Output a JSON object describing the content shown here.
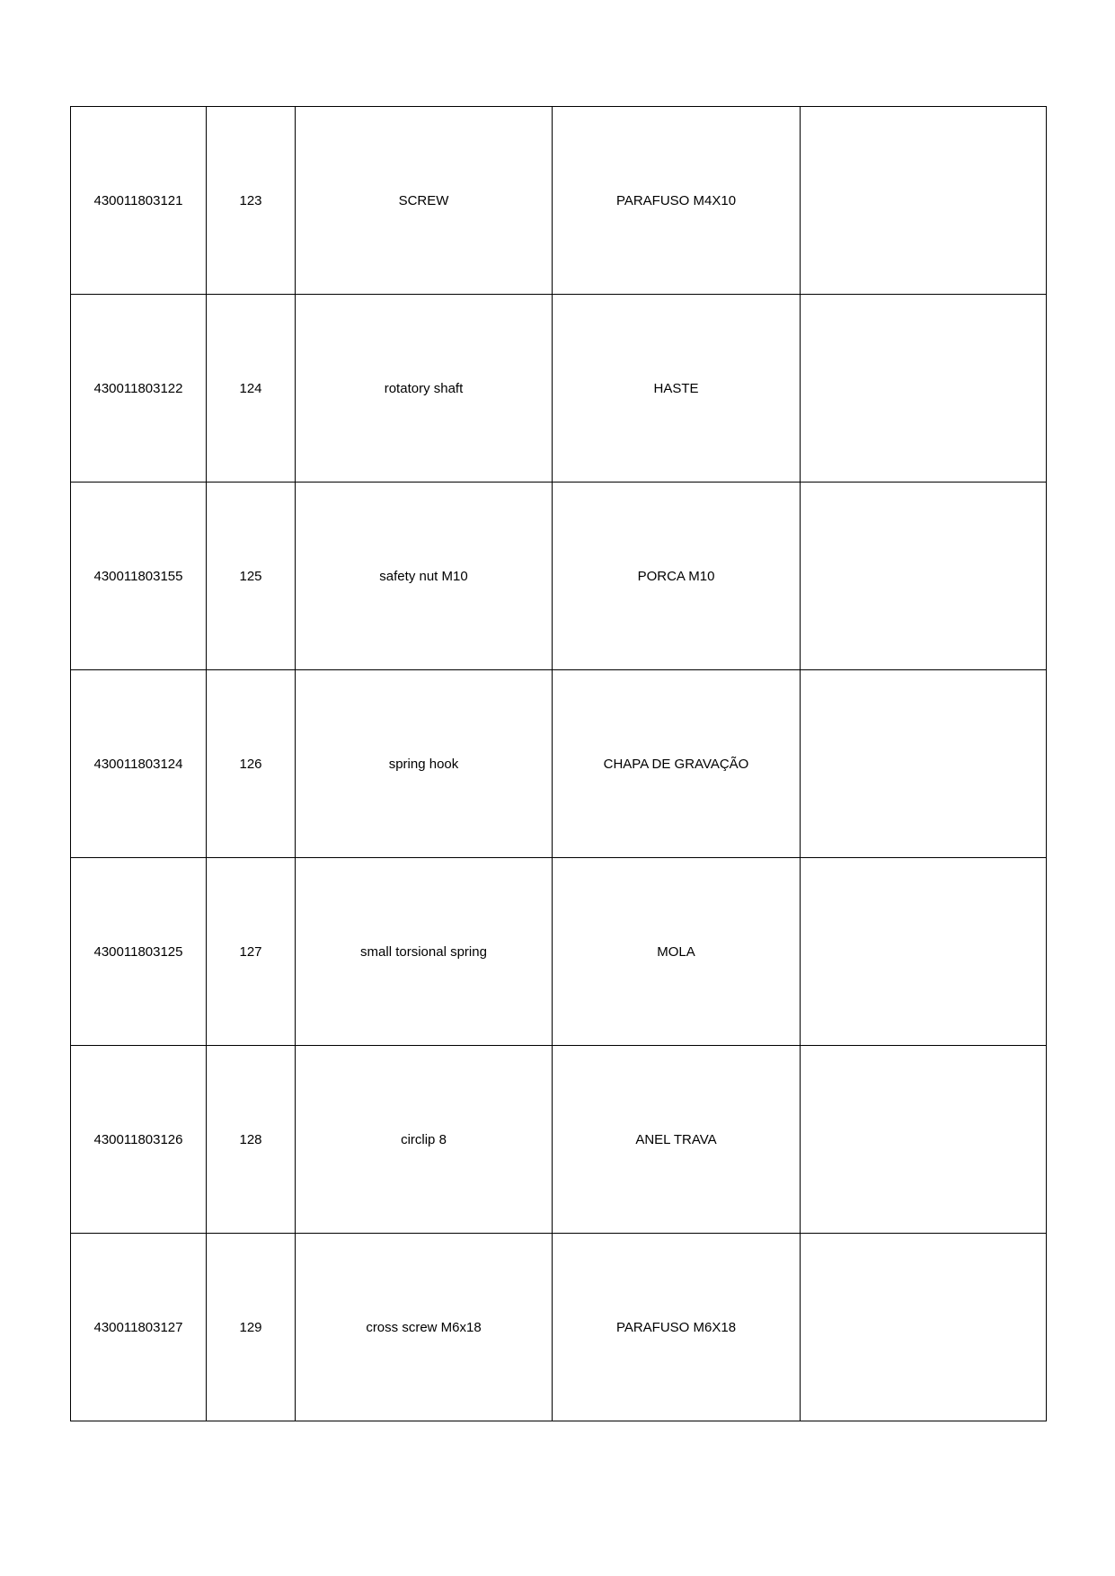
{
  "rows": [
    {
      "code": "430011803121",
      "num": "123",
      "name_en": "SCREW",
      "name_pt": "PARAFUSO M4X10",
      "extra": ""
    },
    {
      "code": "430011803122",
      "num": "124",
      "name_en": "rotatory shaft",
      "name_pt": "HASTE",
      "extra": ""
    },
    {
      "code": "430011803155",
      "num": "125",
      "name_en": "safety nut M10",
      "name_pt": "PORCA M10",
      "extra": ""
    },
    {
      "code": "430011803124",
      "num": "126",
      "name_en": "spring hook",
      "name_pt": "CHAPA DE GRAVAÇÃO",
      "extra": ""
    },
    {
      "code": "430011803125",
      "num": "127",
      "name_en": "small torsional spring",
      "name_pt": "MOLA",
      "extra": ""
    },
    {
      "code": "430011803126",
      "num": "128",
      "name_en": "circlip 8",
      "name_pt": "ANEL TRAVA",
      "extra": ""
    },
    {
      "code": "430011803127",
      "num": "129",
      "name_en": "cross screw M6x18",
      "name_pt": "PARAFUSO M6X18",
      "extra": ""
    }
  ]
}
